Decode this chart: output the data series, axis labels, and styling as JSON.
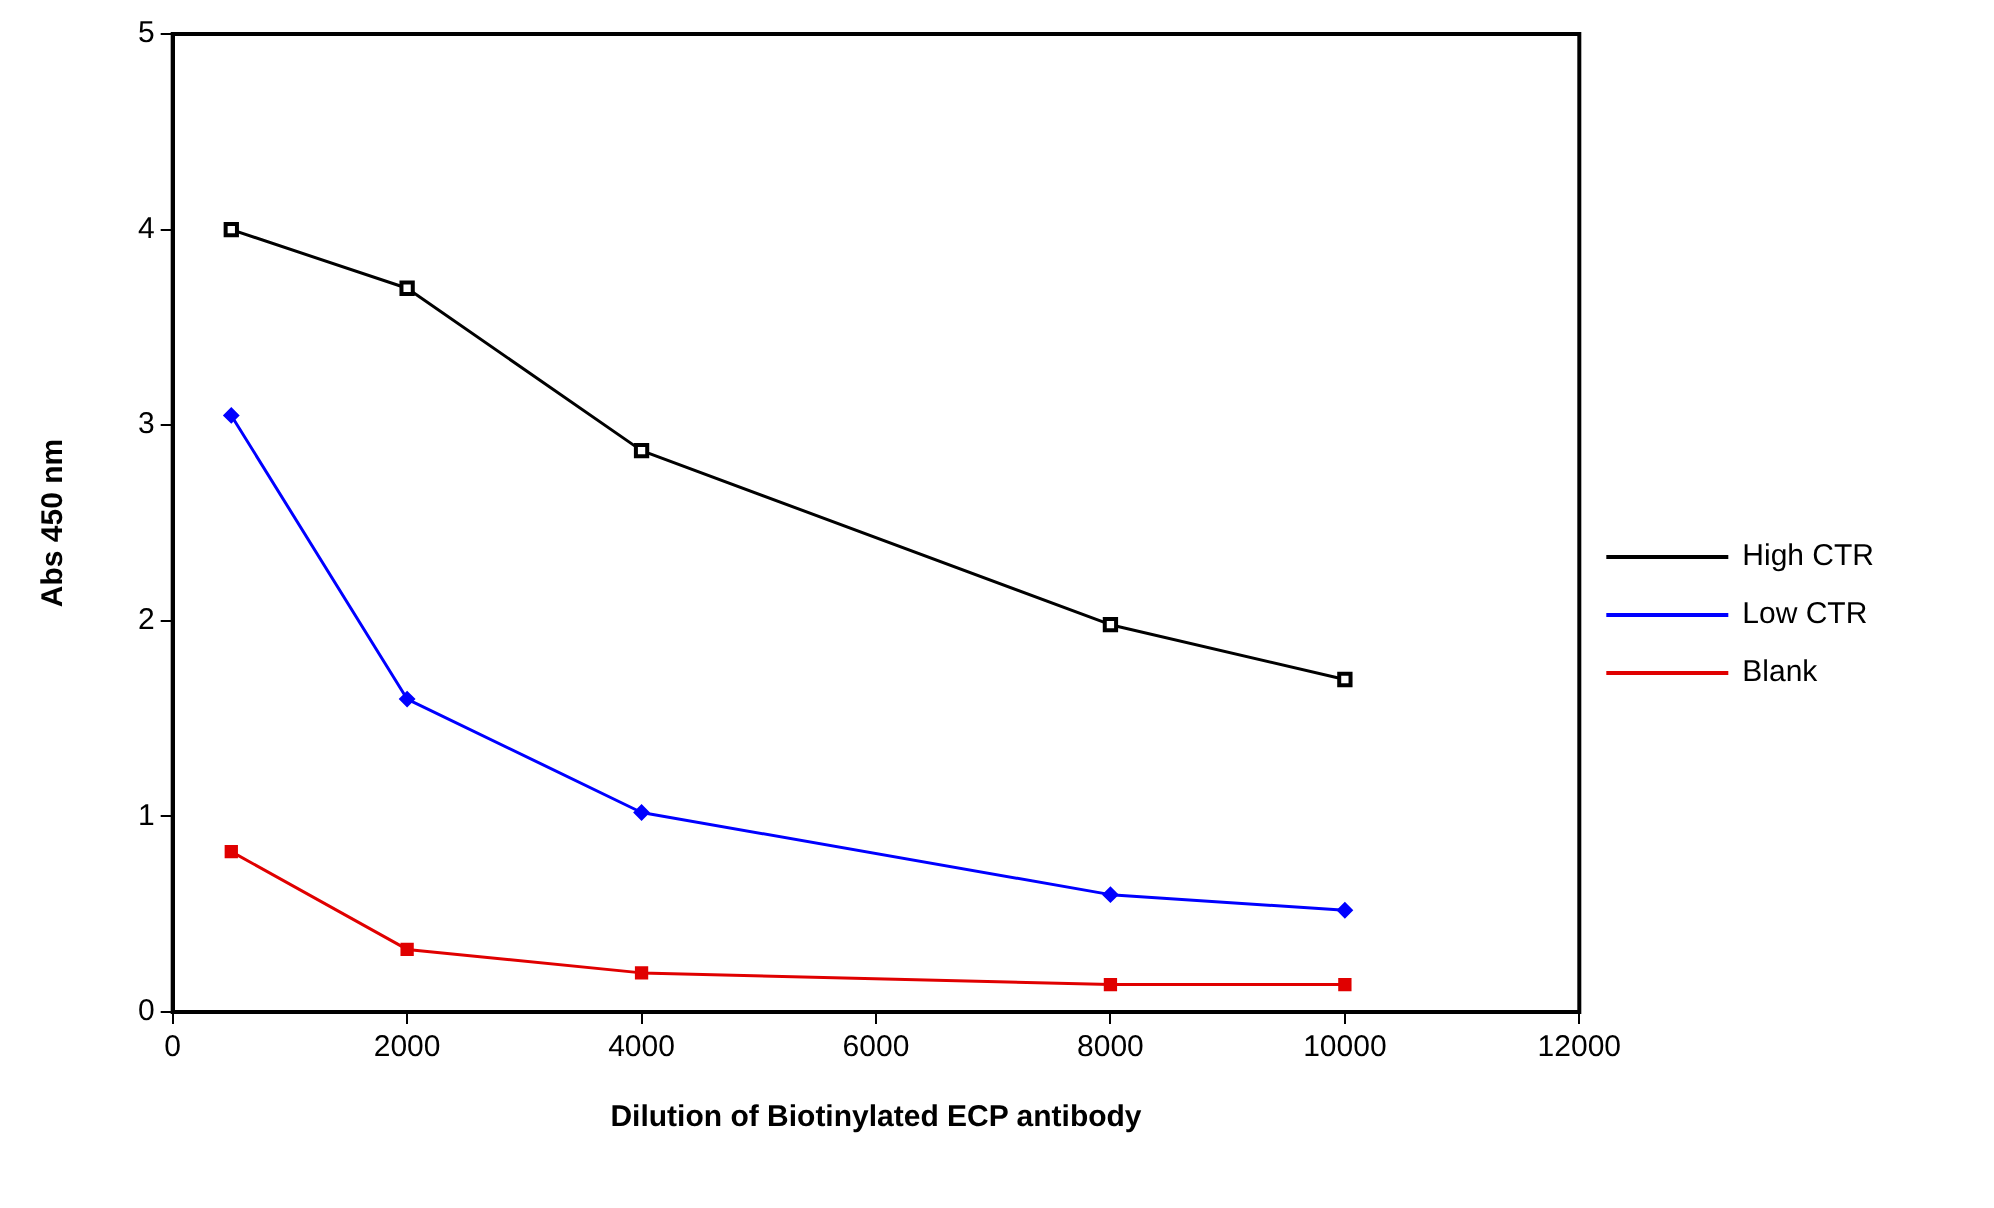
{
  "chart_data": {
    "type": "line",
    "xlabel": "Dilution of Biotinylated ECP antibody",
    "ylabel": "Abs 450 nm",
    "x": [
      500,
      2000,
      4000,
      8000,
      10000
    ],
    "series": [
      {
        "name": "High CTR",
        "color": "#000000",
        "marker": "square",
        "values": [
          4.0,
          3.7,
          2.87,
          1.98,
          1.7
        ]
      },
      {
        "name": "Low CTR",
        "color": "#0000ff",
        "marker": "diamond",
        "values": [
          3.05,
          1.6,
          1.02,
          0.6,
          0.52
        ]
      },
      {
        "name": "Blank",
        "color": "#e00000",
        "marker": "square",
        "values": [
          0.82,
          0.32,
          0.2,
          0.14,
          0.14
        ]
      }
    ],
    "xlim": [
      0,
      12000
    ],
    "xticks": [
      0,
      2000,
      4000,
      6000,
      8000,
      10000,
      12000
    ],
    "ylim": [
      0,
      5
    ],
    "yticks": [
      0,
      1,
      2,
      3,
      4,
      5
    ],
    "grid": false,
    "legend": "right"
  }
}
